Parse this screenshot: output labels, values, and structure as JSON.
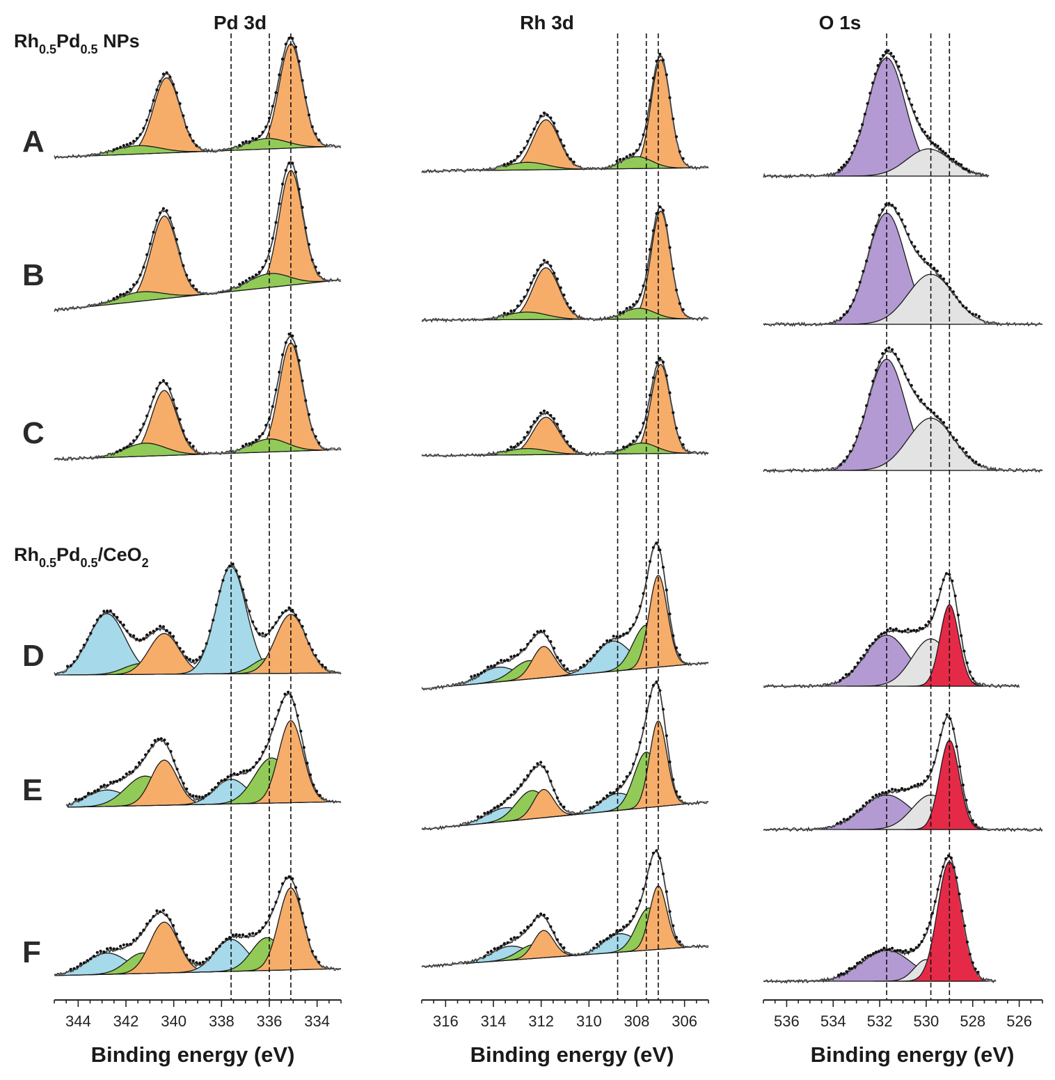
{
  "colors": {
    "orange": "#f6ad6a",
    "green": "#92ca58",
    "blue": "#a6d9ea",
    "purple": "#b49ad3",
    "grey": "#e3e3e3",
    "red": "#e52a48",
    "envelope": "#8a8a8a",
    "points": "#111111"
  },
  "group_labels": {
    "nps_main": "Rh",
    "nps_sub1": "0.5",
    "nps_mid": "Pd",
    "nps_sub2": "0.5",
    "nps_tail": " NPs",
    "ceo2_main": "Rh",
    "ceo2_sub1": "0.5",
    "ceo2_mid": "Pd",
    "ceo2_sub2": "0.5",
    "ceo2_tail": "/CeO",
    "ceo2_sub3": "2"
  },
  "row_labels": [
    "A",
    "B",
    "C",
    "D",
    "E",
    "F"
  ],
  "chart_data": [
    {
      "type": "line",
      "title": "Pd 3d",
      "xlabel": "Binding energy (eV)",
      "ylabel": "",
      "x_reversed": true,
      "xlim": [
        345,
        333
      ],
      "xticks": [
        344,
        342,
        340,
        338,
        336,
        334
      ],
      "reference_lines": [
        337.6,
        336.0,
        335.1
      ],
      "spectra": [
        {
          "row": "A",
          "x_range": [
            345,
            333
          ],
          "peaks": [
            {
              "center": 340.3,
              "height": 0.72,
              "fwhm": 1.3,
              "color": "orange"
            },
            {
              "center": 341.5,
              "height": 0.08,
              "fwhm": 2.2,
              "color": "green"
            },
            {
              "center": 335.1,
              "height": 1.0,
              "fwhm": 1.15,
              "color": "orange"
            },
            {
              "center": 336.1,
              "height": 0.1,
              "fwhm": 2.0,
              "color": "green"
            }
          ]
        },
        {
          "row": "B",
          "x_range": [
            345,
            333
          ],
          "peaks": [
            {
              "center": 340.4,
              "height": 0.72,
              "fwhm": 1.3,
              "color": "orange"
            },
            {
              "center": 341.4,
              "height": 0.08,
              "fwhm": 2.2,
              "color": "green"
            },
            {
              "center": 335.1,
              "height": 1.0,
              "fwhm": 1.15,
              "color": "orange"
            },
            {
              "center": 336.0,
              "height": 0.12,
              "fwhm": 2.0,
              "color": "green"
            }
          ]
        },
        {
          "row": "C",
          "x_range": [
            345,
            333
          ],
          "peaks": [
            {
              "center": 340.4,
              "height": 0.6,
              "fwhm": 1.25,
              "color": "orange"
            },
            {
              "center": 341.2,
              "height": 0.12,
              "fwhm": 2.0,
              "color": "green"
            },
            {
              "center": 335.1,
              "height": 1.0,
              "fwhm": 1.15,
              "color": "orange"
            },
            {
              "center": 336.0,
              "height": 0.12,
              "fwhm": 1.8,
              "color": "green"
            }
          ]
        },
        {
          "row": "D",
          "x_range": [
            345,
            333
          ],
          "peaks": [
            {
              "center": 342.8,
              "height": 0.57,
              "fwhm": 1.8,
              "color": "blue"
            },
            {
              "center": 341.4,
              "height": 0.1,
              "fwhm": 1.6,
              "color": "green"
            },
            {
              "center": 340.4,
              "height": 0.38,
              "fwhm": 1.5,
              "color": "orange"
            },
            {
              "center": 337.6,
              "height": 1.0,
              "fwhm": 1.5,
              "color": "blue"
            },
            {
              "center": 336.1,
              "height": 0.14,
              "fwhm": 1.4,
              "color": "green"
            },
            {
              "center": 335.1,
              "height": 0.55,
              "fwhm": 1.5,
              "color": "orange"
            }
          ]
        },
        {
          "row": "E",
          "x_range": [
            344.5,
            333
          ],
          "peaks": [
            {
              "center": 342.8,
              "height": 0.2,
              "fwhm": 2.0,
              "color": "blue"
            },
            {
              "center": 341.2,
              "height": 0.36,
              "fwhm": 1.9,
              "color": "green"
            },
            {
              "center": 340.4,
              "height": 0.55,
              "fwhm": 1.3,
              "color": "orange"
            },
            {
              "center": 337.6,
              "height": 0.3,
              "fwhm": 1.6,
              "color": "blue"
            },
            {
              "center": 335.9,
              "height": 0.55,
              "fwhm": 1.7,
              "color": "green"
            },
            {
              "center": 335.1,
              "height": 1.0,
              "fwhm": 1.2,
              "color": "orange"
            }
          ]
        },
        {
          "row": "F",
          "x_range": [
            345,
            333
          ],
          "peaks": [
            {
              "center": 342.8,
              "height": 0.26,
              "fwhm": 2.0,
              "color": "blue"
            },
            {
              "center": 341.3,
              "height": 0.25,
              "fwhm": 1.6,
              "color": "green"
            },
            {
              "center": 340.4,
              "height": 0.62,
              "fwhm": 1.4,
              "color": "orange"
            },
            {
              "center": 337.6,
              "height": 0.39,
              "fwhm": 1.6,
              "color": "blue"
            },
            {
              "center": 336.1,
              "height": 0.4,
              "fwhm": 1.5,
              "color": "green"
            },
            {
              "center": 335.1,
              "height": 1.0,
              "fwhm": 1.2,
              "color": "orange"
            }
          ]
        }
      ]
    },
    {
      "type": "line",
      "title": "Rh 3d",
      "xlabel": "Binding energy (eV)",
      "ylabel": "",
      "x_reversed": true,
      "xlim": [
        317,
        305
      ],
      "xticks": [
        316,
        314,
        312,
        310,
        308,
        306
      ],
      "reference_lines": [
        308.8,
        307.6,
        307.1
      ],
      "spectra": [
        {
          "row": "A",
          "x_range": [
            317,
            305
          ],
          "peaks": [
            {
              "center": 311.8,
              "height": 0.46,
              "fwhm": 1.3,
              "color": "orange"
            },
            {
              "center": 312.6,
              "height": 0.07,
              "fwhm": 2.0,
              "color": "green"
            },
            {
              "center": 307.0,
              "height": 1.0,
              "fwhm": 0.95,
              "color": "orange"
            },
            {
              "center": 308.0,
              "height": 0.11,
              "fwhm": 1.5,
              "color": "green"
            }
          ]
        },
        {
          "row": "B",
          "x_range": [
            317,
            305
          ],
          "peaks": [
            {
              "center": 311.8,
              "height": 0.48,
              "fwhm": 1.3,
              "color": "orange"
            },
            {
              "center": 312.6,
              "height": 0.07,
              "fwhm": 2.0,
              "color": "green"
            },
            {
              "center": 307.0,
              "height": 1.0,
              "fwhm": 0.95,
              "color": "orange"
            },
            {
              "center": 307.9,
              "height": 0.1,
              "fwhm": 1.5,
              "color": "green"
            }
          ]
        },
        {
          "row": "C",
          "x_range": [
            317,
            305
          ],
          "peaks": [
            {
              "center": 311.8,
              "height": 0.42,
              "fwhm": 1.3,
              "color": "orange"
            },
            {
              "center": 312.6,
              "height": 0.07,
              "fwhm": 2.0,
              "color": "green"
            },
            {
              "center": 307.0,
              "height": 1.0,
              "fwhm": 0.95,
              "color": "orange"
            },
            {
              "center": 307.8,
              "height": 0.12,
              "fwhm": 1.5,
              "color": "green"
            }
          ]
        },
        {
          "row": "D",
          "x_range": [
            317,
            305
          ],
          "peaks": [
            {
              "center": 313.8,
              "height": 0.16,
              "fwhm": 1.8,
              "color": "blue"
            },
            {
              "center": 312.5,
              "height": 0.2,
              "fwhm": 1.6,
              "color": "green"
            },
            {
              "center": 311.9,
              "height": 0.34,
              "fwhm": 1.1,
              "color": "orange"
            },
            {
              "center": 309.0,
              "height": 0.33,
              "fwhm": 1.7,
              "color": "blue"
            },
            {
              "center": 307.6,
              "height": 0.47,
              "fwhm": 1.3,
              "color": "green"
            },
            {
              "center": 307.1,
              "height": 1.0,
              "fwhm": 0.9,
              "color": "orange"
            }
          ]
        },
        {
          "row": "E",
          "x_range": [
            317,
            305
          ],
          "peaks": [
            {
              "center": 313.5,
              "height": 0.16,
              "fwhm": 1.8,
              "color": "blue"
            },
            {
              "center": 312.4,
              "height": 0.33,
              "fwhm": 1.5,
              "color": "green"
            },
            {
              "center": 311.9,
              "height": 0.33,
              "fwhm": 1.0,
              "color": "orange"
            },
            {
              "center": 308.8,
              "height": 0.2,
              "fwhm": 1.6,
              "color": "blue"
            },
            {
              "center": 307.6,
              "height": 0.65,
              "fwhm": 1.2,
              "color": "green"
            },
            {
              "center": 307.1,
              "height": 1.0,
              "fwhm": 0.85,
              "color": "orange"
            }
          ]
        },
        {
          "row": "F",
          "x_range": [
            317,
            305
          ],
          "peaks": [
            {
              "center": 313.3,
              "height": 0.19,
              "fwhm": 1.8,
              "color": "blue"
            },
            {
              "center": 312.3,
              "height": 0.19,
              "fwhm": 1.5,
              "color": "green"
            },
            {
              "center": 311.9,
              "height": 0.37,
              "fwhm": 1.0,
              "color": "orange"
            },
            {
              "center": 308.7,
              "height": 0.25,
              "fwhm": 1.6,
              "color": "blue"
            },
            {
              "center": 307.5,
              "height": 0.57,
              "fwhm": 1.2,
              "color": "green"
            },
            {
              "center": 307.1,
              "height": 0.86,
              "fwhm": 0.85,
              "color": "orange"
            }
          ]
        }
      ]
    },
    {
      "type": "line",
      "title": "O 1s",
      "xlabel": "Binding energy (eV)",
      "ylabel": "",
      "x_reversed": true,
      "xlim": [
        537,
        525
      ],
      "xticks": [
        536,
        534,
        532,
        530,
        528,
        526
      ],
      "reference_lines": [
        531.7,
        529.8,
        529.0
      ],
      "spectra": [
        {
          "row": "A",
          "x_range": [
            537,
            527.3
          ],
          "peaks": [
            {
              "center": 531.7,
              "height": 1.0,
              "fwhm": 1.9,
              "color": "purple"
            },
            {
              "center": 529.9,
              "height": 0.23,
              "fwhm": 2.2,
              "color": "grey"
            }
          ]
        },
        {
          "row": "B",
          "x_range": [
            537,
            525
          ],
          "peaks": [
            {
              "center": 531.7,
              "height": 1.0,
              "fwhm": 1.9,
              "color": "purple"
            },
            {
              "center": 529.8,
              "height": 0.45,
              "fwhm": 2.3,
              "color": "grey"
            }
          ]
        },
        {
          "row": "C",
          "x_range": [
            537,
            525
          ],
          "peaks": [
            {
              "center": 531.7,
              "height": 1.0,
              "fwhm": 1.9,
              "color": "purple"
            },
            {
              "center": 529.8,
              "height": 0.47,
              "fwhm": 2.3,
              "color": "grey"
            }
          ]
        },
        {
          "row": "D",
          "x_range": [
            537,
            526
          ],
          "peaks": [
            {
              "center": 531.7,
              "height": 0.54,
              "fwhm": 2.2,
              "color": "purple"
            },
            {
              "center": 529.8,
              "height": 0.5,
              "fwhm": 1.9,
              "color": "grey"
            },
            {
              "center": 529.0,
              "height": 0.86,
              "fwhm": 0.95,
              "color": "red"
            }
          ]
        },
        {
          "row": "E",
          "x_range": [
            537,
            525
          ],
          "peaks": [
            {
              "center": 531.7,
              "height": 0.36,
              "fwhm": 2.5,
              "color": "purple"
            },
            {
              "center": 529.8,
              "height": 0.36,
              "fwhm": 1.9,
              "color": "grey"
            },
            {
              "center": 529.0,
              "height": 0.93,
              "fwhm": 1.0,
              "color": "red"
            }
          ]
        },
        {
          "row": "F",
          "x_range": [
            537,
            527
          ],
          "peaks": [
            {
              "center": 531.7,
              "height": 0.26,
              "fwhm": 2.5,
              "color": "purple"
            },
            {
              "center": 530.0,
              "height": 0.18,
              "fwhm": 1.2,
              "color": "grey"
            },
            {
              "center": 529.0,
              "height": 1.0,
              "fwhm": 1.2,
              "color": "red"
            }
          ]
        }
      ]
    }
  ]
}
